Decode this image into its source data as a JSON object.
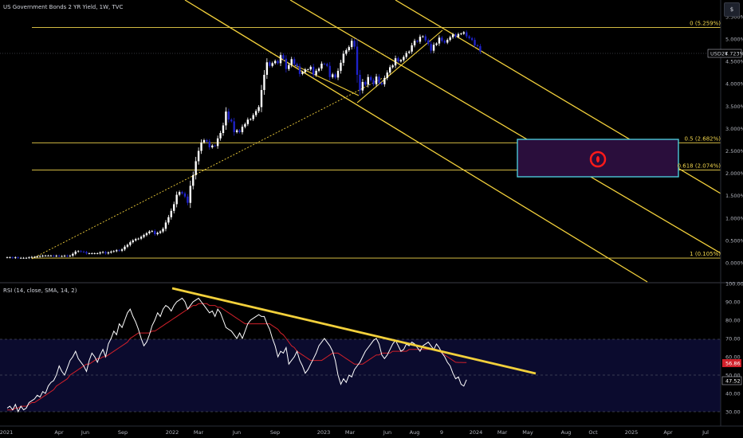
{
  "header": {
    "main_title": "US Government Bonds 2 YR Yield, 1W, TVC",
    "rsi_title": "RSI (14, close, SMA, 14, 2)",
    "scale_button": "$"
  },
  "colors": {
    "background": "#000000",
    "up_candle": "#ffffff",
    "down_candle": "#1e22c9",
    "fib_line": "#f0d44c",
    "channel_line": "#f2d03b",
    "rsi_line": "#ffffff",
    "rsi_ma": "#d0202a",
    "target_box_stroke": "#4fd6e6",
    "target_box_fill": "#2a0e3c",
    "target_marker": "#ff1a1a"
  },
  "chart_data": [
    {
      "type": "candlestick",
      "title": "US Government Bonds 2 YR Yield, 1W, TVC",
      "x_start": "2021-01-01",
      "x_ticks": [
        "2021",
        "Apr",
        "Jun",
        "Sep",
        "2022",
        "Mar",
        "Jun",
        "Sep",
        "2023",
        "Mar",
        "Jun",
        "Aug",
        "9",
        "2024",
        "Mar",
        "May",
        "Aug",
        "Oct",
        "2025",
        "Apr",
        "Jul"
      ],
      "y_ticks": [
        "5.500%",
        "5.000%",
        "4.500%",
        "4.000%",
        "3.500%",
        "3.000%",
        "2.500%",
        "2.000%",
        "1.500%",
        "1.000%",
        "0.500%",
        "0.000%"
      ],
      "ylim": [
        -0.25,
        5.6
      ],
      "current_value_label": "4.723%",
      "symbol_label": "USD2Y",
      "weekly_close": [
        0.12,
        0.12,
        0.11,
        0.12,
        0.11,
        0.11,
        0.11,
        0.11,
        0.12,
        0.13,
        0.13,
        0.14,
        0.15,
        0.16,
        0.16,
        0.16,
        0.16,
        0.15,
        0.16,
        0.15,
        0.15,
        0.16,
        0.15,
        0.16,
        0.2,
        0.25,
        0.26,
        0.25,
        0.24,
        0.21,
        0.21,
        0.21,
        0.21,
        0.21,
        0.23,
        0.24,
        0.21,
        0.23,
        0.25,
        0.26,
        0.28,
        0.27,
        0.3,
        0.36,
        0.4,
        0.46,
        0.5,
        0.53,
        0.54,
        0.58,
        0.62,
        0.66,
        0.7,
        0.71,
        0.64,
        0.67,
        0.7,
        0.76,
        0.9,
        1.02,
        1.16,
        1.31,
        1.52,
        1.58,
        1.55,
        1.48,
        1.34,
        1.72,
        1.96,
        2.27,
        2.5,
        2.69,
        2.74,
        2.71,
        2.58,
        2.62,
        2.61,
        2.78,
        2.9,
        3.07,
        3.38,
        3.2,
        3.16,
        2.92,
        2.96,
        2.92,
        3.04,
        3.1,
        3.2,
        3.21,
        3.3,
        3.39,
        3.48,
        3.86,
        4.2,
        4.48,
        4.4,
        4.46,
        4.51,
        4.46,
        4.64,
        4.56,
        4.33,
        4.42,
        4.55,
        4.44,
        4.39,
        4.22,
        4.26,
        4.32,
        4.32,
        4.38,
        4.2,
        4.29,
        4.34,
        4.45,
        4.44,
        4.4,
        4.15,
        4.21,
        4.14,
        4.29,
        4.47,
        4.67,
        4.75,
        4.82,
        4.96,
        4.83,
        4.2,
        3.85,
        4.04,
        3.98,
        4.15,
        4.08,
        3.99,
        4.16,
        4.02,
        3.99,
        4.13,
        4.25,
        4.37,
        4.41,
        4.57,
        4.5,
        4.53,
        4.6,
        4.69,
        4.72,
        4.86,
        4.96,
        4.94,
        5.05,
        5.06,
        4.97,
        4.89,
        4.74,
        4.87,
        4.9,
        5.03,
        4.96,
        4.92,
        4.98,
        5.04,
        5.1,
        5.05,
        5.11,
        5.12,
        5.15,
        5.06,
        5.02,
        4.98,
        4.86,
        4.84,
        4.72
      ]
    },
    {
      "type": "fibonacci_levels",
      "levels": [
        {
          "ratio": "0",
          "value": 5.259,
          "label": "0 (5.259%)"
        },
        {
          "ratio": "0.5",
          "value": 2.682,
          "label": "0.5 (2.682%)"
        },
        {
          "ratio": "0.618",
          "value": 2.074,
          "label": "0.618 (2.074%)"
        },
        {
          "ratio": "1",
          "value": 0.105,
          "label": "1 (0.105%)"
        }
      ]
    },
    {
      "type": "line",
      "title": "RSI (14, close, SMA, 14, 2)",
      "y_ticks": [
        "100.00",
        "90.00",
        "80.00",
        "70.00",
        "60.00",
        "50.00",
        "40.00",
        "30.00"
      ],
      "ylim": [
        28,
        100
      ],
      "levels": {
        "upper": 70,
        "middle": 50,
        "lower": 30
      },
      "rsi_value_label": "47.52",
      "ma_value_label": "56.86",
      "series": [
        {
          "name": "RSI",
          "values": [
            32,
            33,
            31,
            34,
            30,
            33,
            31,
            32,
            35,
            36,
            37,
            39,
            38,
            41,
            40,
            44,
            46,
            47,
            50,
            55,
            52,
            50,
            54,
            58,
            60,
            63,
            59,
            57,
            55,
            52,
            58,
            62,
            60,
            57,
            61,
            64,
            60,
            67,
            70,
            74,
            72,
            78,
            76,
            80,
            84,
            86,
            82,
            79,
            75,
            70,
            66,
            68,
            72,
            77,
            80,
            84,
            82,
            86,
            88,
            87,
            85,
            88,
            90,
            91,
            92,
            90,
            86,
            88,
            90,
            91,
            92,
            90,
            88,
            86,
            84,
            85,
            82,
            86,
            84,
            80,
            76,
            75,
            74,
            72,
            70,
            73,
            70,
            74,
            78,
            80,
            81,
            82,
            83,
            82,
            82,
            78,
            75,
            70,
            66,
            60,
            63,
            62,
            65,
            56,
            58,
            60,
            63,
            58,
            55,
            51,
            53,
            56,
            59,
            62,
            66,
            68,
            70,
            68,
            66,
            63,
            58,
            50,
            45,
            48,
            46,
            50,
            49,
            53,
            55,
            57,
            60,
            63,
            65,
            67,
            69,
            70,
            67,
            61,
            59,
            61,
            64,
            67,
            69,
            66,
            63,
            64,
            67,
            66,
            68,
            67,
            65,
            63,
            66,
            67,
            68,
            66,
            64,
            67,
            65,
            62,
            60,
            57,
            55,
            51,
            48,
            49,
            45,
            44,
            47.5
          ]
        },
        {
          "name": "RSI-based MA",
          "values": [
            31,
            31,
            31,
            32,
            32,
            33,
            33,
            33,
            34,
            35,
            35,
            36,
            37,
            38,
            39,
            40,
            41,
            42,
            44,
            45,
            46,
            47,
            48,
            50,
            51,
            52,
            53,
            54,
            55,
            56,
            56,
            57,
            58,
            59,
            59,
            60,
            60,
            61,
            62,
            63,
            64,
            65,
            66,
            67,
            68,
            70,
            71,
            72,
            73,
            73,
            73,
            73,
            73,
            74,
            74,
            75,
            76,
            77,
            78,
            79,
            80,
            81,
            82,
            83,
            84,
            85,
            86,
            87,
            88,
            88,
            89,
            89,
            89,
            89,
            88,
            88,
            88,
            87,
            87,
            86,
            85,
            84,
            83,
            82,
            81,
            80,
            79,
            78,
            78,
            78,
            78,
            78,
            78,
            78,
            78,
            78,
            78,
            77,
            76,
            75,
            73,
            72,
            70,
            68,
            66,
            65,
            63,
            62,
            61,
            60,
            59,
            58,
            58,
            58,
            58,
            58,
            59,
            60,
            61,
            62,
            62,
            62,
            61,
            60,
            59,
            58,
            57,
            56,
            56,
            56,
            56,
            57,
            58,
            59,
            60,
            61,
            61,
            62,
            62,
            62,
            62,
            63,
            63,
            63,
            63,
            63,
            63,
            64,
            64,
            64,
            64,
            64,
            64,
            64,
            64,
            64,
            64,
            64,
            63,
            62,
            61,
            60,
            59,
            58,
            57,
            56.9,
            56.9,
            56.86,
            56.86
          ]
        }
      ]
    }
  ]
}
